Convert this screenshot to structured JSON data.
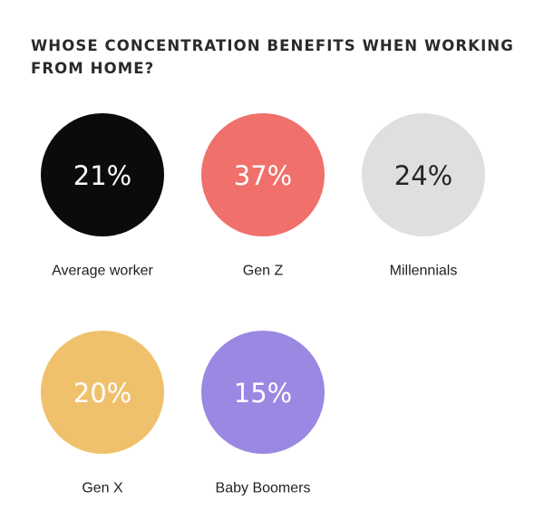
{
  "chart_data": {
    "type": "bubble",
    "title": "WHOSE CONCENTRATION BENEFITS WHEN WORKING FROM HOME?",
    "unit": "%",
    "categories": [
      "Average worker",
      "Gen Z",
      "Millennials",
      "Gen X",
      "Baby Boomers"
    ],
    "values": [
      21,
      37,
      24,
      20,
      15
    ],
    "value_labels": [
      "21%",
      "37%",
      "24%",
      "20%",
      "15%"
    ],
    "colors": [
      "#0b0b0b",
      "#f0706b",
      "#e1dfdd",
      "#f0c16c",
      "#9a88e2"
    ],
    "value_text_colors": [
      "#ffffff",
      "#ffffff",
      "#262626",
      "#ffffff",
      "#ffffff"
    ]
  }
}
